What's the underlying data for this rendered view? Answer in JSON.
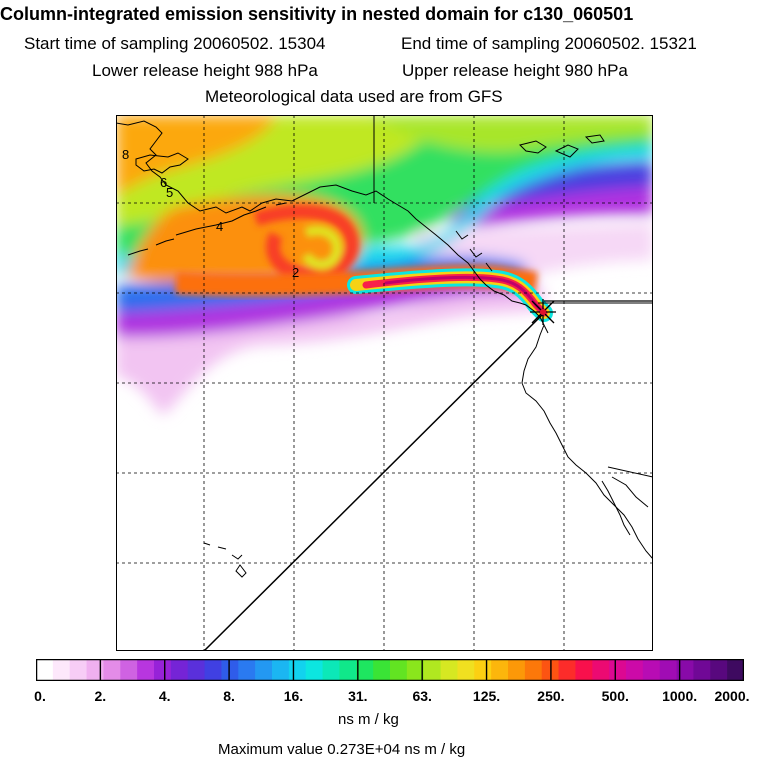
{
  "header": {
    "title": "Column-integrated emission sensitivity in nested domain for c130_060501",
    "start_time": "Start time of sampling 20060502. 15304",
    "end_time": "End time of sampling 20060502. 15321",
    "lower_release": "Lower release height  988 hPa",
    "upper_release": "Upper release height  980 hPa",
    "met_data": "Meteorological data used are from GFS"
  },
  "map": {
    "contour_labels": [
      "8",
      "6",
      "5",
      "4",
      "2"
    ],
    "colors": {
      "ocean_background": "#ffffff",
      "plume_core": "#c0006a",
      "receptor_marker": "#e0102a"
    }
  },
  "colorbar": {
    "tick_labels": [
      "0.",
      "2.",
      "4.",
      "8.",
      "16.",
      "31.",
      "63.",
      "125.",
      "250.",
      "500.",
      "1000.",
      "2000."
    ],
    "colors": [
      "#ffffff",
      "#fde8fb",
      "#f7cdf6",
      "#f0b0f0",
      "#e48ce8",
      "#cf62e2",
      "#b836df",
      "#9722d8",
      "#7524d6",
      "#5a30db",
      "#4040e2",
      "#2f5cea",
      "#2a7af0",
      "#2398f2",
      "#1bb6f2",
      "#12d2ee",
      "#0ce6e0",
      "#0ce8b8",
      "#10e88a",
      "#1ee660",
      "#3ae436",
      "#62e422",
      "#8ae61c",
      "#b0e820",
      "#d6e822",
      "#f0e020",
      "#fcd012",
      "#fcb60c",
      "#fc9808",
      "#fc780a",
      "#fc5412",
      "#fc2c2a",
      "#f8104c",
      "#ec0a72",
      "#dc0892",
      "#cc0aa8",
      "#b80cb4",
      "#a00cb4",
      "#880aa8",
      "#700896",
      "#58087e",
      "#3e0a60"
    ],
    "units": "ns m / kg"
  },
  "footer": {
    "max_value": "Maximum value  0.273E+04 ns m / kg"
  }
}
